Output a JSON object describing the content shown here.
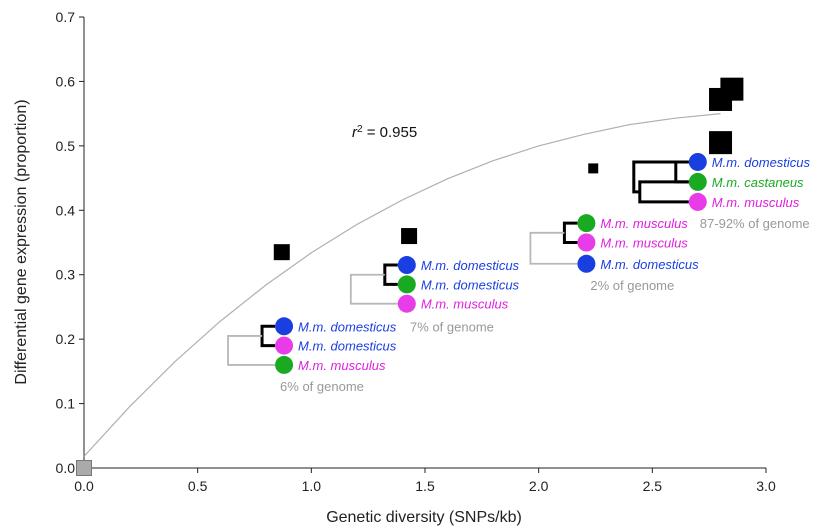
{
  "chart_data": {
    "type": "scatter",
    "xlabel": "Genetic diversity (SNPs/kb)",
    "ylabel": "Differential gene expression (proportion)",
    "xlim": [
      0.0,
      3.0
    ],
    "ylim": [
      0.0,
      0.7
    ],
    "x_ticks": [
      "0.0",
      "0.5",
      "1.0",
      "1.5",
      "2.0",
      "2.5",
      "3.0"
    ],
    "y_ticks": [
      "0.0",
      "0.1",
      "0.2",
      "0.3",
      "0.4",
      "0.5",
      "0.6",
      "0.7"
    ],
    "grid": false,
    "annotation": {
      "r2_prefix": "r",
      "r2_sup": "2",
      "r2_suffix": " = 0.955"
    },
    "points": [
      {
        "x": 0.0,
        "y": 0.0,
        "size": "medium",
        "color": "#aaaaaa"
      },
      {
        "x": 0.87,
        "y": 0.335,
        "size": "medium",
        "color": "#000000"
      },
      {
        "x": 1.43,
        "y": 0.36,
        "size": "medium",
        "color": "#000000"
      },
      {
        "x": 2.24,
        "y": 0.465,
        "size": "small",
        "color": "#000000"
      },
      {
        "x": 2.8,
        "y": 0.505,
        "size": "large",
        "color": "#000000"
      },
      {
        "x": 2.8,
        "y": 0.572,
        "size": "large",
        "color": "#000000"
      },
      {
        "x": 2.85,
        "y": 0.588,
        "size": "large",
        "color": "#000000"
      }
    ],
    "fit_curve": {
      "color": "#b0b0b0",
      "points": [
        [
          0.0,
          0.018
        ],
        [
          0.2,
          0.095
        ],
        [
          0.4,
          0.165
        ],
        [
          0.6,
          0.228
        ],
        [
          0.8,
          0.284
        ],
        [
          1.0,
          0.334
        ],
        [
          1.2,
          0.378
        ],
        [
          1.4,
          0.416
        ],
        [
          1.6,
          0.449
        ],
        [
          1.8,
          0.477
        ],
        [
          2.0,
          0.5
        ],
        [
          2.2,
          0.518
        ],
        [
          2.4,
          0.533
        ],
        [
          2.6,
          0.543
        ],
        [
          2.8,
          0.55
        ]
      ]
    },
    "trees": [
      {
        "x": 0.88,
        "y": [
          0.22,
          0.19,
          0.16
        ],
        "labels": [
          "M.m. domesticus",
          "M.m. domesticus",
          "M.m. musculus"
        ],
        "dots": [
          "#1a3fe0",
          "#e83ce8",
          "#1aaa22"
        ],
        "label_colors": [
          "#1a3fe0",
          "#1a3fe0",
          "#e020e0"
        ],
        "genome": "7% of genome",
        "genome2": "6% of genome"
      },
      {
        "x": 1.42,
        "y": [
          0.315,
          0.285,
          0.255
        ],
        "labels": [
          "M.m. domesticus",
          "M.m. domesticus",
          "M.m. musculus"
        ],
        "dots": [
          "#1a3fe0",
          "#1aaa22",
          "#e83ce8"
        ],
        "label_colors": [
          "#1a3fe0",
          "#1a3fe0",
          "#e020e0"
        ],
        "genome": ""
      },
      {
        "x": 2.21,
        "y": [
          0.38,
          0.35,
          0.317
        ],
        "labels": [
          "M.m. musculus",
          "M.m. musculus",
          "M.m. domesticus"
        ],
        "dots": [
          "#1aaa22",
          "#e83ce8",
          "#1a3fe0"
        ],
        "label_colors": [
          "#e020e0",
          "#e020e0",
          "#1a3fe0"
        ],
        "genome": "2% of genome"
      },
      {
        "x": 2.7,
        "y": [
          0.475,
          0.444,
          0.413
        ],
        "labels": [
          "M.m. domesticus",
          "M.m. castaneus",
          "M.m. musculus"
        ],
        "dots": [
          "#1a3fe0",
          "#1aaa22",
          "#e83ce8"
        ],
        "label_colors": [
          "#1a3fe0",
          "#1aaa22",
          "#e020e0"
        ],
        "genome": "87-92% of genome"
      }
    ]
  }
}
